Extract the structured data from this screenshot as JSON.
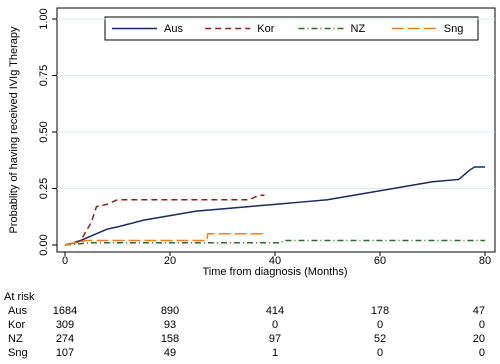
{
  "chart_data": {
    "type": "line",
    "xlabel": "Time from diagnosis (Months)",
    "ylabel": "Probablity of having received IVIg Therapy",
    "xlim": [
      0,
      80
    ],
    "xticks": [
      0,
      20,
      40,
      60,
      80
    ],
    "ylim": [
      0,
      1
    ],
    "yticks": [
      {
        "value": 0,
        "label": "0.00"
      },
      {
        "value": 0.25,
        "label": "0.25"
      },
      {
        "value": 0.5,
        "label": "0.50"
      },
      {
        "value": 0.75,
        "label": "0.75"
      },
      {
        "value": 1,
        "label": "1.00"
      }
    ],
    "grid": true,
    "legend": "top",
    "series": [
      {
        "name": "Aus",
        "color": "#1b2a5c",
        "dash": "none",
        "x": [
          0,
          2,
          4,
          6,
          8,
          10,
          15,
          20,
          25,
          30,
          35,
          40,
          45,
          50,
          55,
          60,
          65,
          70,
          75,
          77,
          78,
          80
        ],
        "values": [
          0,
          0.01,
          0.03,
          0.05,
          0.07,
          0.08,
          0.11,
          0.13,
          0.15,
          0.16,
          0.17,
          0.18,
          0.19,
          0.2,
          0.22,
          0.24,
          0.26,
          0.28,
          0.29,
          0.33,
          0.345,
          0.345
        ]
      },
      {
        "name": "Kor",
        "color": "#8b1f1f",
        "dash": "6,4",
        "x": [
          0,
          3,
          5,
          6,
          8,
          10,
          35,
          37,
          38
        ],
        "values": [
          0,
          0.02,
          0.1,
          0.17,
          0.18,
          0.2,
          0.2,
          0.22,
          0.22
        ]
      },
      {
        "name": "NZ",
        "color": "#2e6b2e",
        "dash": "6,3,1,3",
        "x": [
          0,
          5,
          41,
          42,
          80
        ],
        "values": [
          0,
          0.01,
          0.01,
          0.02,
          0.02
        ]
      },
      {
        "name": "Sng",
        "color": "#e8801e",
        "dash": "12,4",
        "x": [
          0,
          4,
          27,
          27.2,
          38
        ],
        "values": [
          0,
          0.02,
          0.02,
          0.05,
          0.05
        ]
      }
    ]
  },
  "at_risk": {
    "title": "At risk",
    "rows": [
      {
        "name": "Aus",
        "values": [
          "1684",
          "890",
          "414",
          "178",
          "47"
        ]
      },
      {
        "name": "Kor",
        "values": [
          "309",
          "93",
          "0",
          "0",
          "0"
        ]
      },
      {
        "name": "NZ",
        "values": [
          "274",
          "158",
          "97",
          "52",
          "20"
        ]
      },
      {
        "name": "Sng",
        "values": [
          "107",
          "49",
          "1",
          "0",
          "0"
        ]
      }
    ]
  }
}
